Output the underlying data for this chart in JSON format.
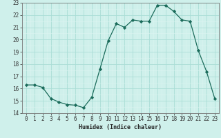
{
  "x": [
    0,
    1,
    2,
    3,
    4,
    5,
    6,
    7,
    8,
    9,
    10,
    11,
    12,
    13,
    14,
    15,
    16,
    17,
    18,
    19,
    20,
    21,
    22,
    23
  ],
  "y": [
    16.3,
    16.3,
    16.1,
    15.2,
    14.9,
    14.7,
    14.65,
    14.45,
    15.3,
    17.6,
    19.9,
    21.3,
    21.0,
    21.6,
    21.5,
    21.5,
    22.8,
    22.8,
    22.3,
    21.6,
    21.5,
    19.1,
    17.4,
    15.2
  ],
  "line_color": "#1a6b5a",
  "marker": "D",
  "markersize": 2.2,
  "linewidth": 0.9,
  "bg_color": "#cff0eb",
  "grid_major_color": "#aaddd6",
  "grid_minor_color": "#ddf5f2",
  "xlabel": "Humidex (Indice chaleur)",
  "xlim": [
    -0.5,
    23.5
  ],
  "ylim": [
    14,
    23
  ],
  "yticks": [
    14,
    15,
    16,
    17,
    18,
    19,
    20,
    21,
    22,
    23
  ],
  "xticks": [
    0,
    1,
    2,
    3,
    4,
    5,
    6,
    7,
    8,
    9,
    10,
    11,
    12,
    13,
    14,
    15,
    16,
    17,
    18,
    19,
    20,
    21,
    22,
    23
  ],
  "xlabel_fontsize": 6.0,
  "tick_fontsize": 5.5
}
